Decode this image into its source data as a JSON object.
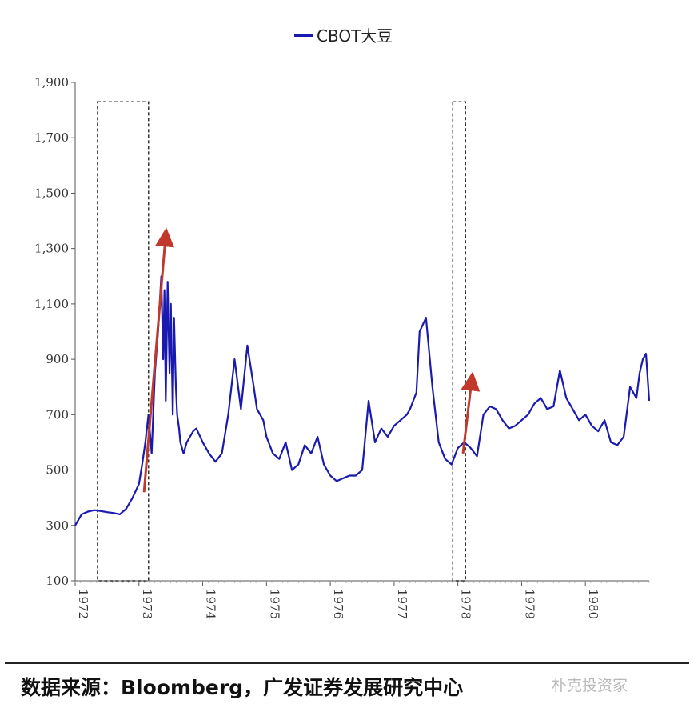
{
  "chart_data": {
    "type": "line",
    "legend": [
      "CBOT大豆"
    ],
    "legend_position": "top-center",
    "ylim": [
      100,
      1900
    ],
    "y_ticks": [
      "100",
      "300",
      "500",
      "700",
      "900",
      "1,100",
      "1,300",
      "1,500",
      "1,700",
      "1,900"
    ],
    "x_ticks": [
      "1972",
      "1973",
      "1974",
      "1975",
      "1976",
      "1977",
      "1978",
      "1979",
      "1980"
    ],
    "xlim": [
      1972.0,
      1981.0
    ],
    "grid": false,
    "series": [
      {
        "name": "CBOT大豆",
        "color": "#1a1ab0",
        "x": [
          1972.0,
          1972.05,
          1972.1,
          1972.2,
          1972.3,
          1972.4,
          1972.5,
          1972.6,
          1972.7,
          1972.8,
          1972.9,
          1973.0,
          1973.05,
          1973.1,
          1973.15,
          1973.2,
          1973.25,
          1973.3,
          1973.35,
          1973.38,
          1973.4,
          1973.42,
          1973.45,
          1973.48,
          1973.5,
          1973.53,
          1973.55,
          1973.58,
          1973.6,
          1973.63,
          1973.65,
          1973.7,
          1973.75,
          1973.8,
          1973.85,
          1973.9,
          1974.0,
          1974.1,
          1974.2,
          1974.3,
          1974.4,
          1974.5,
          1974.6,
          1974.7,
          1974.8,
          1974.85,
          1974.9,
          1974.95,
          1975.0,
          1975.1,
          1975.2,
          1975.3,
          1975.4,
          1975.5,
          1975.6,
          1975.7,
          1975.8,
          1975.9,
          1976.0,
          1976.1,
          1976.2,
          1976.3,
          1976.4,
          1976.5,
          1976.6,
          1976.7,
          1976.8,
          1976.9,
          1977.0,
          1977.1,
          1977.2,
          1977.25,
          1977.3,
          1977.35,
          1977.4,
          1977.5,
          1977.6,
          1977.7,
          1977.8,
          1977.9,
          1978.0,
          1978.1,
          1978.2,
          1978.3,
          1978.4,
          1978.5,
          1978.6,
          1978.7,
          1978.8,
          1978.9,
          1979.0,
          1979.1,
          1979.2,
          1979.3,
          1979.4,
          1979.5,
          1979.6,
          1979.7,
          1979.8,
          1979.9,
          1980.0,
          1980.1,
          1980.2,
          1980.3,
          1980.4,
          1980.5,
          1980.6,
          1980.7,
          1980.8,
          1980.85,
          1980.9,
          1980.95,
          1981.0
        ],
        "y": [
          300,
          320,
          340,
          350,
          355,
          352,
          348,
          345,
          340,
          360,
          400,
          450,
          520,
          600,
          700,
          560,
          850,
          1000,
          1200,
          900,
          1150,
          750,
          1180,
          850,
          1100,
          700,
          1050,
          800,
          700,
          650,
          600,
          560,
          600,
          620,
          640,
          650,
          600,
          560,
          530,
          560,
          700,
          900,
          720,
          950,
          800,
          720,
          700,
          680,
          620,
          560,
          540,
          600,
          500,
          520,
          590,
          560,
          620,
          520,
          480,
          460,
          470,
          480,
          480,
          500,
          750,
          600,
          650,
          620,
          660,
          680,
          700,
          720,
          750,
          780,
          1000,
          1050,
          800,
          600,
          540,
          520,
          580,
          600,
          580,
          550,
          700,
          730,
          720,
          680,
          650,
          660,
          680,
          700,
          740,
          760,
          720,
          730,
          860,
          760,
          720,
          680,
          700,
          660,
          640,
          680,
          600,
          590,
          620,
          800,
          760,
          850,
          900,
          920,
          750
        ]
      }
    ]
  },
  "annotations": {
    "boxes": [
      {
        "x_from": 1972.35,
        "x_to": 1973.15,
        "y_from": 100,
        "y_to": 1830
      },
      {
        "x_from": 1977.92,
        "x_to": 1978.12,
        "y_from": 100,
        "y_to": 1830
      }
    ],
    "arrows": [
      {
        "color": "#c0392b",
        "x_from": 1973.08,
        "y_from": 420,
        "x_to": 1973.42,
        "y_to": 1350
      },
      {
        "color": "#c0392b",
        "x_from": 1978.08,
        "y_from": 560,
        "x_to": 1978.22,
        "y_to": 830
      }
    ]
  },
  "footer": {
    "source": "数据来源：Bloomberg，广发证券发展研究中心",
    "watermark": "朴克投资家"
  }
}
